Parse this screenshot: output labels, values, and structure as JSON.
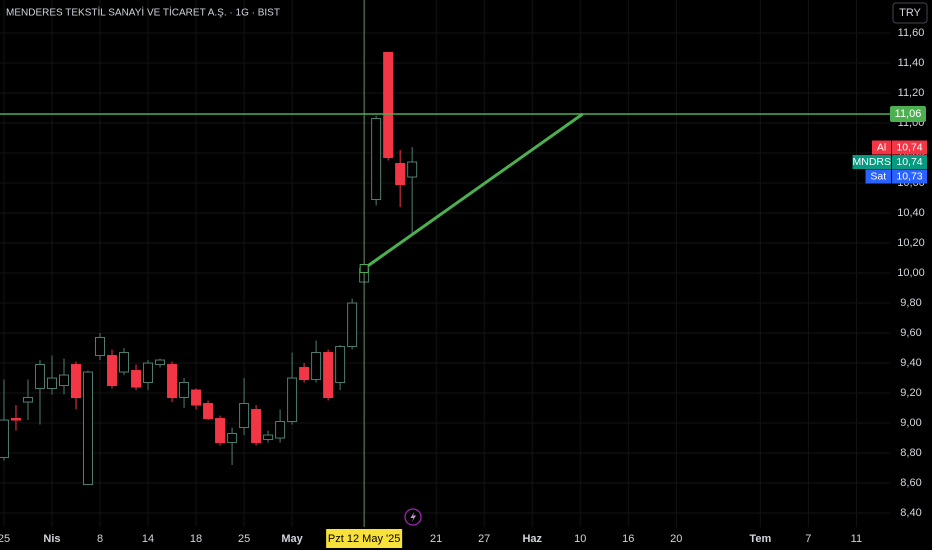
{
  "chart_data": {
    "type": "candlestick",
    "title": "MENDERES TEKSTİL SANAYİ VE TİCARET A.Ş. · 1G · BIST",
    "currency": "TRY",
    "open": [
      8.77,
      9.03,
      9.14,
      9.23,
      9.23,
      9.25,
      9.39,
      8.59,
      9.45,
      9.45,
      9.34,
      9.35,
      9.27,
      9.39,
      9.39,
      9.17,
      9.22,
      9.13,
      9.03,
      8.87,
      8.97,
      9.09,
      8.89,
      8.9,
      9.01,
      9.37,
      9.29,
      9.47,
      9.27,
      9.51,
      9.94,
      10.49,
      11.47,
      10.73,
      10.64
    ],
    "high": [
      9.29,
      9.12,
      9.29,
      9.42,
      9.45,
      9.43,
      9.41,
      9.35,
      9.6,
      9.49,
      9.5,
      9.39,
      9.42,
      9.43,
      9.41,
      9.3,
      9.23,
      9.15,
      9.05,
      8.97,
      9.3,
      9.12,
      8.95,
      9.09,
      9.47,
      9.4,
      9.55,
      9.49,
      9.52,
      9.83,
      10.05,
      11.05,
      11.47,
      10.82,
      10.84
    ],
    "low": [
      8.75,
      8.95,
      9.02,
      8.99,
      9.19,
      9.19,
      9.09,
      8.59,
      9.42,
      9.23,
      9.32,
      9.22,
      9.22,
      9.37,
      9.14,
      9.1,
      9.09,
      9.02,
      8.85,
      8.72,
      8.92,
      8.85,
      8.87,
      8.87,
      8.99,
      9.27,
      9.27,
      9.15,
      9.22,
      9.49,
      9.93,
      10.45,
      10.75,
      10.44,
      10.25
    ],
    "close": [
      9.02,
      9.02,
      9.17,
      9.39,
      9.3,
      9.32,
      9.17,
      9.34,
      9.57,
      9.25,
      9.47,
      9.24,
      9.4,
      9.42,
      9.17,
      9.27,
      9.12,
      9.03,
      8.87,
      8.93,
      9.13,
      8.87,
      8.92,
      9.01,
      9.3,
      9.29,
      9.47,
      9.17,
      9.51,
      9.8,
      10.03,
      11.03,
      10.77,
      10.59,
      10.74
    ],
    "up_color": "#4f7f70",
    "down_color": "#f23645",
    "xlim": [
      -0.33,
      73.8
    ],
    "xticks": [
      {
        "value": 0,
        "label": "25"
      },
      {
        "value": 4,
        "label": "Nis"
      },
      {
        "value": 8,
        "label": "8"
      },
      {
        "value": 12,
        "label": "14"
      },
      {
        "value": 16,
        "label": "18"
      },
      {
        "value": 20,
        "label": "25"
      },
      {
        "value": 24,
        "label": "May"
      },
      {
        "value": 36,
        "label": "21"
      },
      {
        "value": 40,
        "label": "27"
      },
      {
        "value": 44,
        "label": "Haz"
      },
      {
        "value": 48,
        "label": "10"
      },
      {
        "value": 52,
        "label": "16"
      },
      {
        "value": 56,
        "label": "20"
      },
      {
        "value": 63,
        "label": "Tem"
      },
      {
        "value": 67,
        "label": "7"
      },
      {
        "value": 71,
        "label": "11"
      }
    ],
    "crosshair": {
      "value": 30,
      "label": "Pzt 12 May '25"
    },
    "ylim": [
      8.307,
      11.82
    ],
    "yticks": [
      {
        "value": 8.4,
        "label": "8,40"
      },
      {
        "value": 8.6,
        "label": "8,60"
      },
      {
        "value": 8.8,
        "label": "8,80"
      },
      {
        "value": 9.0,
        "label": "9,00"
      },
      {
        "value": 9.2,
        "label": "9,20"
      },
      {
        "value": 9.4,
        "label": "9,40"
      },
      {
        "value": 9.6,
        "label": "9,60"
      },
      {
        "value": 9.8,
        "label": "9,80"
      },
      {
        "value": 10.0,
        "label": "10,00"
      },
      {
        "value": 10.2,
        "label": "10,20"
      },
      {
        "value": 10.4,
        "label": "10,40"
      },
      {
        "value": 10.6,
        "label": "10,60"
      },
      {
        "value": 10.8,
        "label": "10,80"
      },
      {
        "value": 11.0,
        "label": "11,00"
      },
      {
        "value": 11.2,
        "label": "11,20"
      },
      {
        "value": 11.4,
        "label": "11,40"
      },
      {
        "value": 11.6,
        "label": "11,60"
      }
    ],
    "grid": true,
    "hline": {
      "value": 11.06,
      "label": "11,06",
      "color": "#4caf50"
    },
    "trendline": {
      "x": [
        30,
        48.2
      ],
      "y": [
        10.03,
        11.06
      ],
      "color": "#4caf50"
    },
    "price_labels": [
      {
        "name": "Al",
        "value": 10.74,
        "label": "10,74",
        "color": "#f23645"
      },
      {
        "name": "MNDRS",
        "value": 10.74,
        "label": "10,74",
        "color": "#089981"
      },
      {
        "name": "Sat",
        "value": 10.73,
        "label": "10,73",
        "color": "#2962ff"
      }
    ]
  }
}
